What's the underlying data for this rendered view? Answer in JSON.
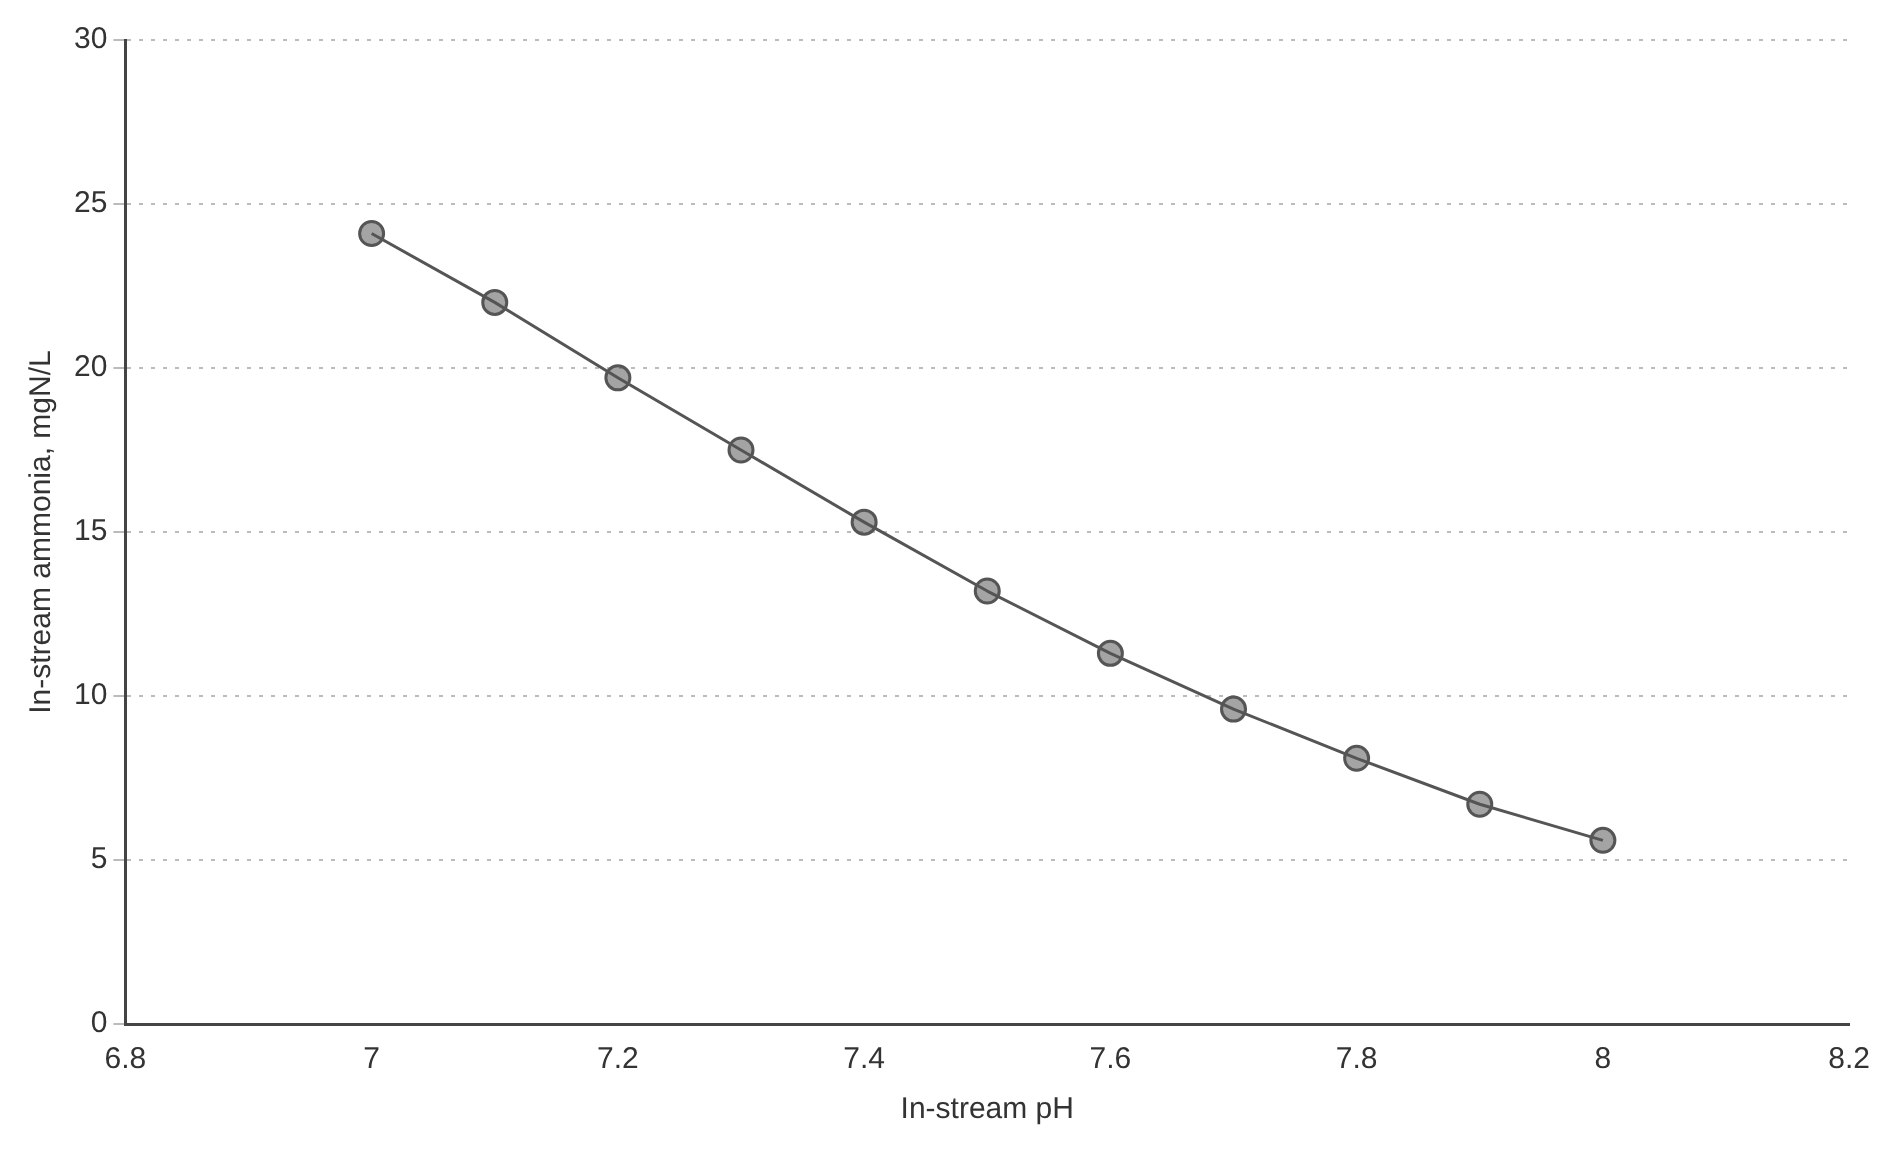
{
  "chart_data": {
    "type": "line",
    "xlabel": "In-stream pH",
    "ylabel": "In-stream ammonia, mgN/L",
    "x": [
      7,
      7.1,
      7.2,
      7.3,
      7.4,
      7.5,
      7.6,
      7.7,
      7.8,
      7.9,
      8
    ],
    "series": [
      {
        "color": "#555555",
        "values": [
          24.1,
          22.0,
          19.7,
          17.5,
          15.3,
          13.2,
          11.3,
          9.6,
          8.1,
          6.7,
          5.6
        ]
      }
    ],
    "xlim": [
      6.8,
      8.2
    ],
    "xticks": [
      6.8,
      7,
      7.2,
      7.4,
      7.6,
      7.8,
      8,
      8.2
    ],
    "ylim": [
      0,
      30
    ],
    "yticks": [
      0,
      5,
      10,
      15,
      20,
      25,
      30
    ],
    "grid": "y",
    "legend": false,
    "marker": "circle",
    "line_style": "solid"
  }
}
